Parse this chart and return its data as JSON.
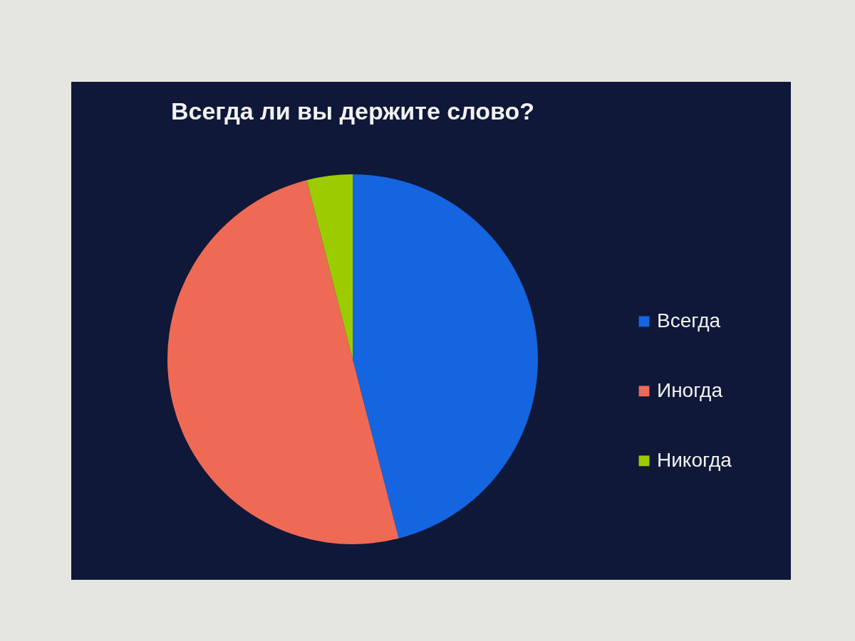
{
  "chart_data": {
    "type": "pie",
    "title": "Всегда ли вы держите слово?",
    "categories": [
      "Всегда",
      "Иногда",
      "Никогда"
    ],
    "values": [
      46,
      50,
      4
    ],
    "colors": [
      "#1565e0",
      "#ee6a55",
      "#9ccc00"
    ],
    "legend": "right"
  }
}
